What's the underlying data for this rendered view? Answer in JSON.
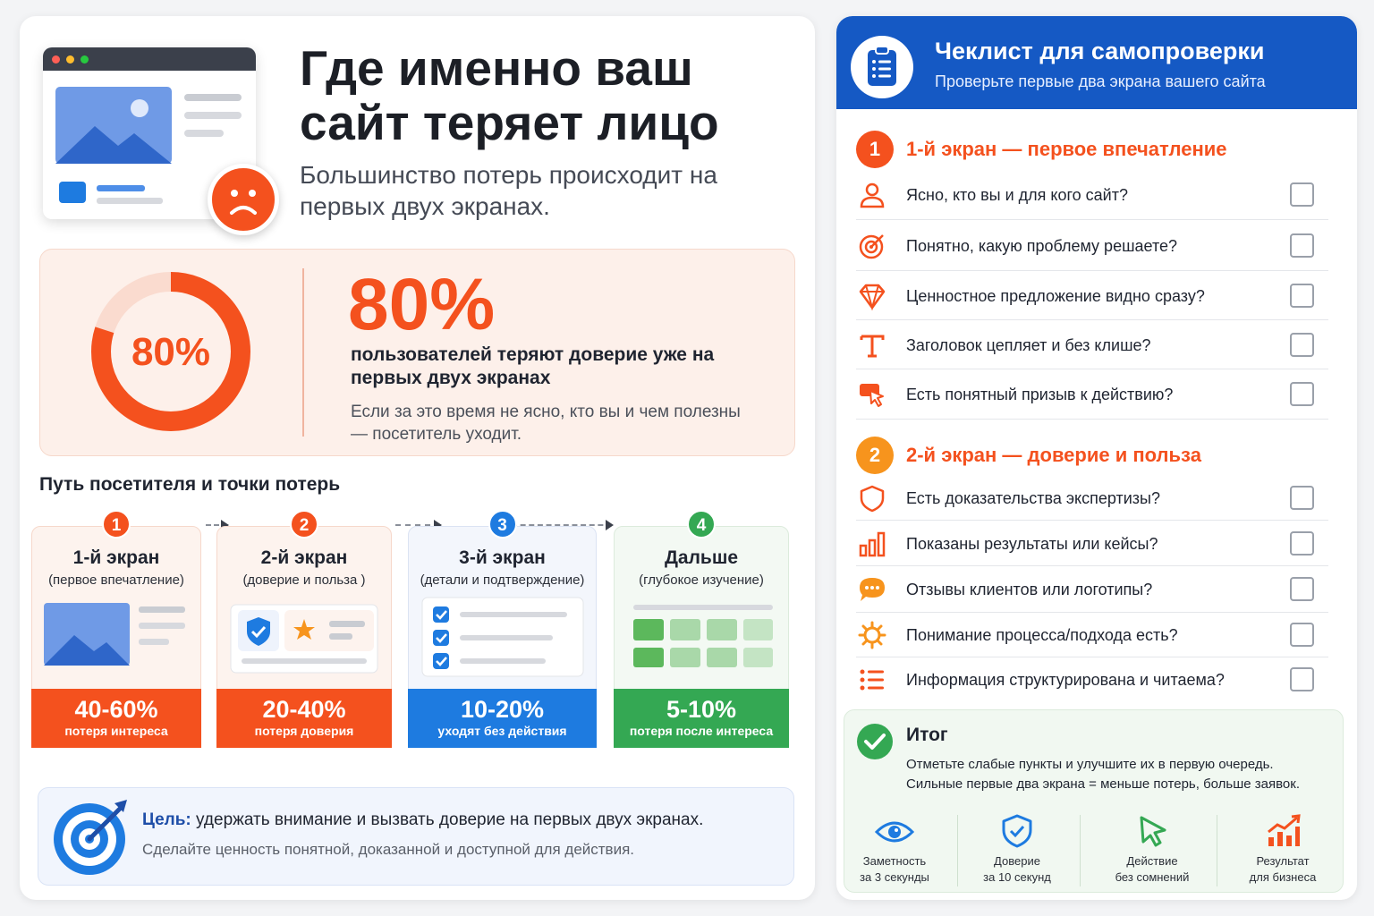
{
  "header": {
    "title": "Где именно ваш сайт теряет лицо",
    "subtitle": "Большинство потерь происходит на первых двух экранах."
  },
  "stat": {
    "donut_label": "80%",
    "donut_value": 80,
    "big_value": "80%",
    "main_text": "пользователей теряют доверие уже на первых двух экранах",
    "note": "Если за это время не ясно, кто вы и чем полезны — посетитель уходит."
  },
  "journey": {
    "title": "Путь посетителя и точки потерь",
    "steps": [
      {
        "num": "1",
        "title": "1-й экран",
        "subtitle": "(первое впечатление)",
        "percent": "40-60%",
        "label": "потеря интереса",
        "color": "#f4511e"
      },
      {
        "num": "2",
        "title": "2-й экран",
        "subtitle": "(доверие и польза )",
        "percent": "20-40%",
        "label": "потеря доверия",
        "color": "#f4511e"
      },
      {
        "num": "3",
        "title": "3-й экран",
        "subtitle": "(детали и подтверждение)",
        "percent": "10-20%",
        "label": "уходят без действия",
        "color": "#1e7be0"
      },
      {
        "num": "4",
        "title": "Дальше",
        "subtitle": "(глубокое изучение)",
        "percent": "5-10%",
        "label": "потеря после интереса",
        "color": "#34a853"
      }
    ]
  },
  "goal": {
    "label": "Цель:",
    "text": " удержать внимание и вызвать доверие на первых двух экранах.",
    "sub": "Сделайте ценность понятной, доказанной и доступной для действия."
  },
  "checklist": {
    "title": "Чеклист для самопроверки",
    "subtitle": "Проверьте первые два экрана вашего сайта",
    "sections": [
      {
        "num": "1",
        "title": "1-й экран — первое впечатление",
        "items": [
          {
            "text": "Ясно, кто вы и для кого сайт?",
            "icon": "user-icon"
          },
          {
            "text": "Понятно, какую проблему решаете?",
            "icon": "target-icon"
          },
          {
            "text": "Ценностное предложение видно сразу?",
            "icon": "diamond-icon"
          },
          {
            "text": "Заголовок цепляет и без клише?",
            "icon": "text-icon"
          },
          {
            "text": "Есть понятный призыв к действию?",
            "icon": "cursor-click-icon"
          }
        ]
      },
      {
        "num": "2",
        "title": "2-й экран — доверие и польза",
        "items": [
          {
            "text": "Есть доказательства экспертизы?",
            "icon": "shield-icon"
          },
          {
            "text": "Показаны результаты или кейсы?",
            "icon": "bar-chart-icon"
          },
          {
            "text": "Отзывы клиентов или логотипы?",
            "icon": "chat-bubble-icon"
          },
          {
            "text": "Понимание процесса/подхода есть?",
            "icon": "gear-icon"
          },
          {
            "text": "Информация структурирована и читаема?",
            "icon": "list-icon"
          }
        ]
      }
    ],
    "summary": {
      "title": "Итог",
      "line1": "Отметьте слабые пункты и улучшите их в первую очередь.",
      "line2": "Сильные первые два экрана = меньше потерь, больше заявок.",
      "results": [
        {
          "l1": "Заметность",
          "l2": "за 3 секунды",
          "icon": "eye-icon"
        },
        {
          "l1": "Доверие",
          "l2": "за 10 секунд",
          "icon": "shield-check-icon"
        },
        {
          "l1": "Действие",
          "l2": "без сомнений",
          "icon": "cursor-icon"
        },
        {
          "l1": "Результат",
          "l2": "для бизнеса",
          "icon": "growth-chart-icon"
        }
      ]
    }
  },
  "colors": {
    "accent": "#f4511e",
    "blue": "#1559c4",
    "green": "#34a853"
  }
}
